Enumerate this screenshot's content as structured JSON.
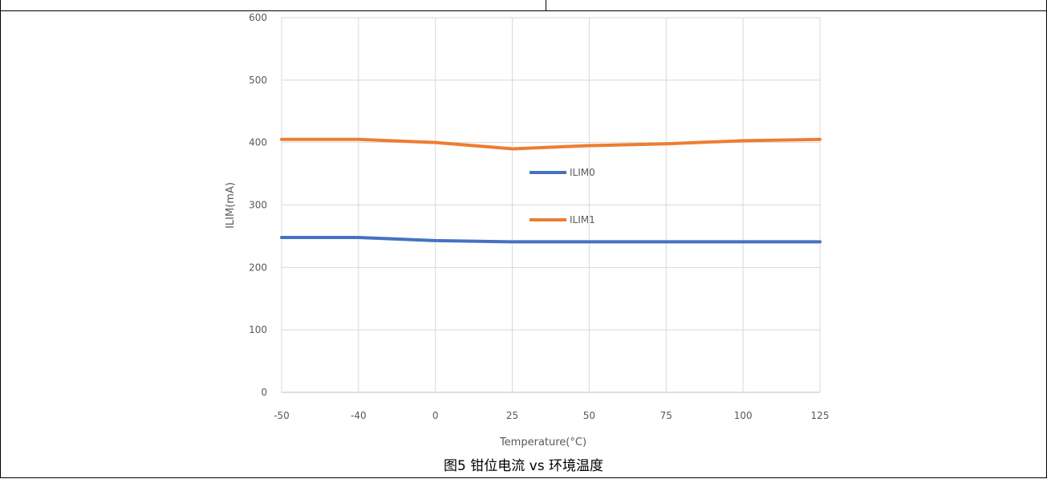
{
  "caption": "图5 钳位电流 vs 环境温度",
  "chart_data": {
    "type": "line",
    "title": "",
    "xlabel": "Temperature(°C)",
    "ylabel": "ILIM(mA)",
    "categories": [
      "-50",
      "-40",
      "0",
      "25",
      "50",
      "75",
      "100",
      "125"
    ],
    "ylim": [
      0,
      600
    ],
    "yticks": [
      0,
      100,
      200,
      300,
      400,
      500,
      600
    ],
    "grid": true,
    "legend_position": "center",
    "series": [
      {
        "name": "ILIM0",
        "color": "#4472c4",
        "values": [
          248,
          248,
          243,
          241,
          241,
          241,
          241,
          241
        ]
      },
      {
        "name": "ILIM1",
        "color": "#ed7d31",
        "values": [
          405,
          405,
          400,
          390,
          395,
          398,
          403,
          405
        ]
      }
    ]
  }
}
